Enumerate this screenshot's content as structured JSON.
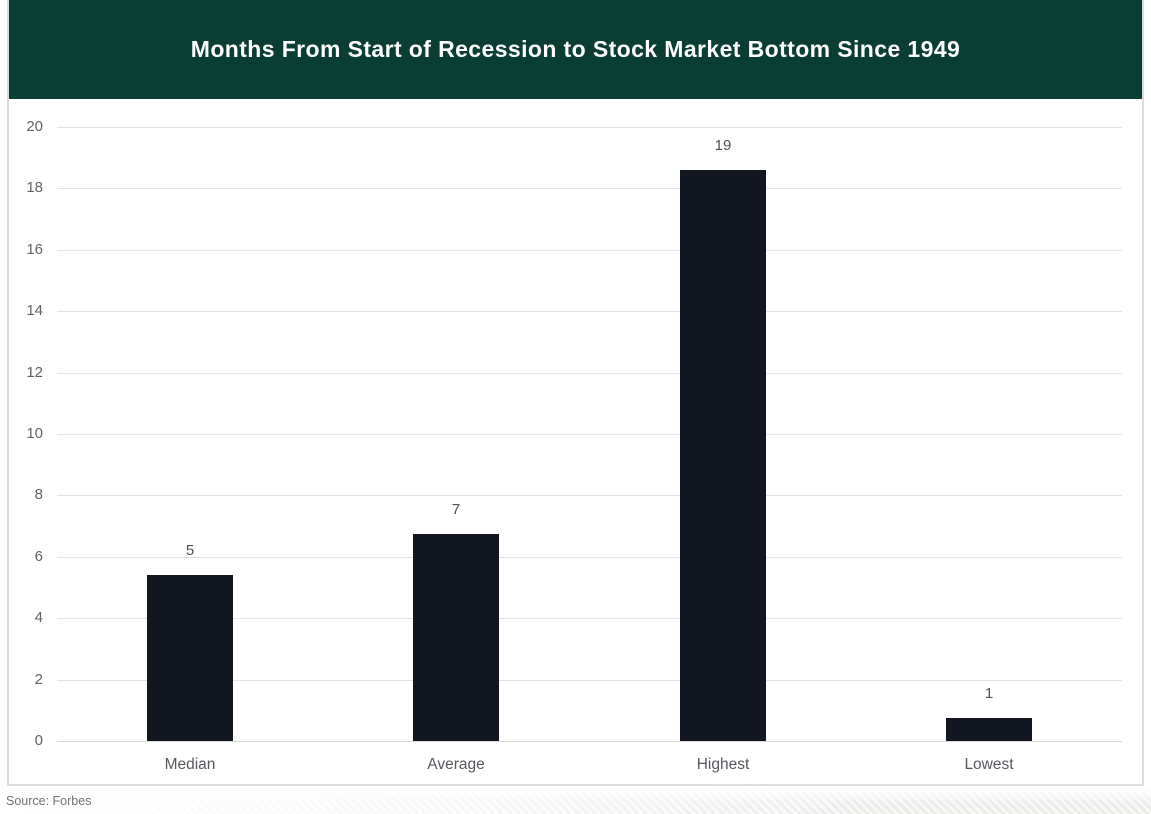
{
  "header": {
    "title": "Months From Start of Recession to Stock Market Bottom Since 1949"
  },
  "footer": {
    "source_label": "Source: Forbes"
  },
  "colors": {
    "header_background": "#0a3d33",
    "header_text": "#ffffff",
    "bar_fill": "#111621",
    "gridline": "#e2e2e2",
    "axis_text": "#5f6368",
    "card_border": "#dcdcdc"
  },
  "chart_data": {
    "type": "bar",
    "title": "Months From Start of Recession to Stock Market Bottom Since 1949",
    "categories": [
      "Median",
      "Average",
      "Highest",
      "Lowest"
    ],
    "values": [
      5,
      7,
      19,
      1
    ],
    "data_labels": [
      "5",
      "7",
      "19",
      "1"
    ],
    "bar_heights_plotted": [
      5.4,
      6.75,
      18.6,
      0.75
    ],
    "xlabel": "",
    "ylabel": "",
    "ylim": [
      0,
      20
    ],
    "yticks": [
      0,
      2,
      4,
      6,
      8,
      10,
      12,
      14,
      16,
      18,
      20
    ],
    "grid": true,
    "legend": false,
    "bar_color": "#111621"
  }
}
